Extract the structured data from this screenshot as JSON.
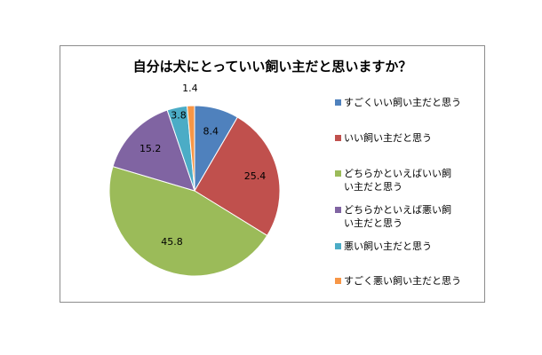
{
  "chart_data": {
    "type": "pie",
    "title": "自分は犬にとっていい飼い主だと思いますか？",
    "categories": [
      "すごくいい飼い主だと思う",
      "いい飼い主だと思う",
      "どちらかといえばいい飼い主だと思う",
      "どちらかといえば悪い飼い主だと思う",
      "悪い飼い主だと思う",
      "すごく悪い飼い主だと思う"
    ],
    "values": [
      8.4,
      25.4,
      45.8,
      15.2,
      3.8,
      1.4
    ],
    "value_labels": [
      "8.4",
      "25.4",
      "45.8",
      "15.2",
      "3.8",
      "1.4"
    ],
    "legend_lines": [
      [
        "すごくいい飼い主だと思う"
      ],
      [
        "いい飼い主だと思う"
      ],
      [
        "どちらかといえばいい飼",
        "い主だと思う"
      ],
      [
        "どちらかといえば悪い飼",
        "い主だと思う"
      ],
      [
        "悪い飼い主だと思う"
      ],
      [
        "すごく悪い飼い主だと思う"
      ]
    ],
    "colors": [
      "#4f81bd",
      "#c0504d",
      "#9bbb59",
      "#8064a2",
      "#4bacc6",
      "#f79646"
    ],
    "legend_position": "right"
  }
}
